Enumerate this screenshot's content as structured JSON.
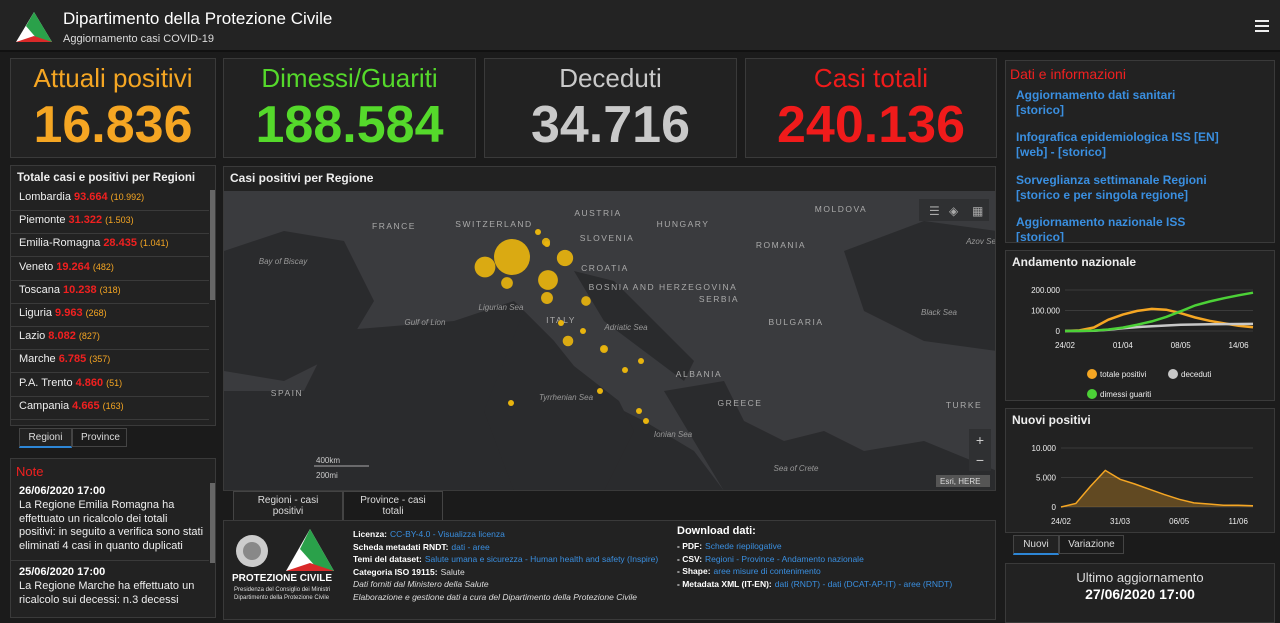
{
  "header": {
    "title": "Dipartimento della Protezione Civile",
    "subtitle": "Aggiornamento casi COVID-19"
  },
  "kpis": [
    {
      "label": "Attuali positivi",
      "value": "16.836",
      "color": "#f5a623"
    },
    {
      "label": "Dimessi/Guariti",
      "value": "188.584",
      "color": "#55d92b"
    },
    {
      "label": "Deceduti",
      "value": "34.716",
      "color": "#c9c9c9"
    },
    {
      "label": "Casi totali",
      "value": "240.136",
      "color": "#f01b1b"
    }
  ],
  "regions": {
    "title": "Totale casi e positivi per Regioni",
    "rows": [
      {
        "name": "Lombardia",
        "total": "93.664",
        "positive": "(10.992)"
      },
      {
        "name": "Piemonte",
        "total": "31.322",
        "positive": "(1.503)"
      },
      {
        "name": "Emilia-Romagna",
        "total": "28.435",
        "positive": "(1.041)"
      },
      {
        "name": "Veneto",
        "total": "19.264",
        "positive": "(482)"
      },
      {
        "name": "Toscana",
        "total": "10.238",
        "positive": "(318)"
      },
      {
        "name": "Liguria",
        "total": "9.963",
        "positive": "(268)"
      },
      {
        "name": "Lazio",
        "total": "8.082",
        "positive": "(827)"
      },
      {
        "name": "Marche",
        "total": "6.785",
        "positive": "(357)"
      },
      {
        "name": "P.A. Trento",
        "total": "4.860",
        "positive": "(51)"
      },
      {
        "name": "Campania",
        "total": "4.665",
        "positive": "(163)"
      }
    ],
    "tabs": [
      "Regioni",
      "Province"
    ]
  },
  "notes": {
    "title": "Note",
    "items": [
      {
        "date": "26/06/2020 17:00",
        "text": "La Regione Emilia Romagna ha effettuato un ricalcolo dei totali positivi: in seguito a verifica sono stati eliminati 4 casi in quanto duplicati"
      },
      {
        "date": "25/06/2020 17:00",
        "text": "La Regione Marche ha effettuato un ricalcolo sui decessi: n.3 decessi"
      }
    ]
  },
  "map": {
    "title": "Casi positivi per Regione",
    "tabs": [
      "Regioni - casi positivi",
      "Province - casi totali"
    ],
    "labels": [
      {
        "text": "FRANCE",
        "kind": "country"
      },
      {
        "text": "SWITZERLAND",
        "kind": "country"
      },
      {
        "text": "AUSTRIA",
        "kind": "country"
      },
      {
        "text": "HUNGARY",
        "kind": "country"
      },
      {
        "text": "MOLDOVA",
        "kind": "country"
      },
      {
        "text": "SLOVENIA",
        "kind": "country"
      },
      {
        "text": "CROATIA",
        "kind": "country"
      },
      {
        "text": "ROMANIA",
        "kind": "country"
      },
      {
        "text": "BOSNIA AND HERZEGOVINA",
        "kind": "country"
      },
      {
        "text": "SERBIA",
        "kind": "country"
      },
      {
        "text": "BULGARIA",
        "kind": "country"
      },
      {
        "text": "ITALY",
        "kind": "country"
      },
      {
        "text": "ALBANIA",
        "kind": "country"
      },
      {
        "text": "GREECE",
        "kind": "country"
      },
      {
        "text": "TURKE",
        "kind": "country"
      },
      {
        "text": "SPAIN",
        "kind": "country"
      },
      {
        "text": "Bay of Biscay",
        "kind": "sea"
      },
      {
        "text": "Gulf of Lion",
        "kind": "sea"
      },
      {
        "text": "Ligurian Sea",
        "kind": "sea"
      },
      {
        "text": "Adriatic Sea",
        "kind": "sea"
      },
      {
        "text": "Tyrrhenian Sea",
        "kind": "sea"
      },
      {
        "text": "Ionian Sea",
        "kind": "sea"
      },
      {
        "text": "Sea of Crete",
        "kind": "sea"
      },
      {
        "text": "Black Sea",
        "kind": "sea"
      },
      {
        "text": "Azov Se",
        "kind": "sea"
      }
    ],
    "scale": [
      "400km",
      "200mi"
    ],
    "attribution": "Esri, HERE"
  },
  "footer": {
    "logo": [
      "PROTEZIONE CIVILE",
      "Presidenza del Consiglio dei Ministri",
      "Dipartimento della Protezione Civile"
    ],
    "left": [
      {
        "label": "Licenza:",
        "text": "CC-BY-4.0 - Visualizza licenza"
      },
      {
        "label": "Scheda metadati RNDT:",
        "text": "dati - aree"
      },
      {
        "label": "Temi del dataset:",
        "text": "Salute umana e sicurezza - Human health and safety (Inspire)"
      },
      {
        "label": "Categoria ISO 19115:",
        "text": "Salute"
      },
      {
        "label": "",
        "text": "Dati forniti dal Ministero della Salute"
      },
      {
        "label": "",
        "text": "Elaborazione e gestione dati a cura del Dipartimento della Protezione Civile"
      }
    ],
    "download_title": "Download dati:",
    "right": [
      {
        "label": "- PDF:",
        "text": "Schede riepilogative"
      },
      {
        "label": "- CSV:",
        "text": "Regioni - Province - Andamento nazionale"
      },
      {
        "label": "- Shape:",
        "text": "aree misure di contenimento"
      },
      {
        "label": "- Metadata XML (IT-EN):",
        "text": "dati (RNDT) - dati (DCAT-AP-IT) - aree (RNDT)"
      }
    ]
  },
  "info": {
    "title": "Dati e informazioni",
    "links": [
      {
        "title": "Aggiornamento dati sanitari",
        "sub": "[storico]"
      },
      {
        "title": "Infografica epidemiologica ISS [EN]",
        "sub": "[web] - [storico]"
      },
      {
        "title": "Sorveglianza settimanale Regioni",
        "sub": "[storico e per singola regione]"
      },
      {
        "title": "Aggiornamento nazionale ISS",
        "sub": "[storico]"
      }
    ]
  },
  "andamento_nazionale": {
    "type": "line",
    "title": "Andamento nazionale",
    "categories": [
      "24/02",
      null,
      null,
      null,
      "01/04",
      null,
      null,
      null,
      "08/05",
      null,
      null,
      null,
      "14/06",
      null
    ],
    "series": [
      {
        "name": "totale positivi",
        "color": "#f5a623",
        "values": [
          200,
          3000,
          17000,
          55000,
          80000,
          98000,
          108000,
          104000,
          87000,
          66000,
          50000,
          37000,
          26000,
          18000
        ]
      },
      {
        "name": "deceduti",
        "color": "#c8c8c8",
        "values": [
          7,
          150,
          1400,
          6000,
          13000,
          18800,
          23600,
          27000,
          30000,
          31900,
          32900,
          33600,
          34300,
          34700
        ]
      },
      {
        "name": "dimessi guariti",
        "color": "#4cd137",
        "values": [
          1,
          400,
          1900,
          7400,
          16800,
          30500,
          47000,
          68900,
          96000,
          125000,
          144000,
          160000,
          174000,
          187000
        ]
      }
    ],
    "ylim": [
      0,
      200000
    ],
    "yticks": [
      0,
      {
        "value": 100000,
        "label": "100.000"
      },
      {
        "value": 200000,
        "label": "200.000"
      }
    ],
    "grid": true
  },
  "nuovi_positivi": {
    "type": "area",
    "title": "Nuovi positivi",
    "categories": [
      "24/02",
      null,
      null,
      null,
      "31/03",
      null,
      null,
      null,
      "06/05",
      null,
      null,
      null,
      "11/06",
      null
    ],
    "series": [
      {
        "name": "Nuovi",
        "color": "#f5a623",
        "values": [
          0,
          600,
          3500,
          6200,
          4700,
          3900,
          3000,
          2100,
          1300,
          700,
          500,
          300,
          300,
          200
        ]
      }
    ],
    "ylim": [
      0,
      10000
    ],
    "yticks": [
      0,
      {
        "value": 5000,
        "label": "5.000"
      },
      {
        "value": 10000,
        "label": "10.000"
      }
    ],
    "grid": true,
    "tabs": [
      "Nuovi",
      "Variazione"
    ]
  },
  "ultimo_aggiornamento": {
    "label": "Ultimo aggiornamento",
    "value": "27/06/2020 17:00"
  }
}
